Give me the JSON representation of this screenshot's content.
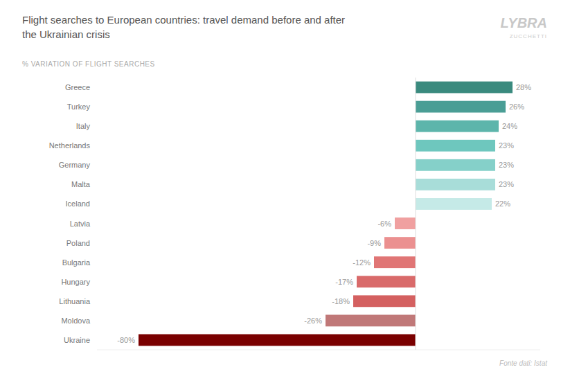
{
  "chart_data": {
    "type": "bar",
    "orientation": "horizontal",
    "title": [
      "Flight searches to European countries: travel demand before and after",
      "the Ukrainian crisis"
    ],
    "subtitle": "% VARIATION OF FLIGHT SEARCHES",
    "annotations": [
      "LYBRA",
      "ZUCCHETTI",
      "Fonte dati: Istat"
    ],
    "categories": [
      "Greece",
      "Turkey",
      "Italy",
      "Netherlands",
      "Germany",
      "Malta",
      "Iceland",
      "Latvia",
      "Poland",
      "Bulgaria",
      "Hungary",
      "Lithuania",
      "Moldova",
      "Ukraine"
    ],
    "values": [
      28,
      26,
      24,
      23,
      23,
      23,
      22,
      -6,
      -9,
      -12,
      -17,
      -18,
      -26,
      -80
    ],
    "value_labels": [
      "28%",
      "26%",
      "24%",
      "23%",
      "23%",
      "23%",
      "22%",
      "-6%",
      "-9%",
      "-12%",
      "-17%",
      "-18%",
      "-26%",
      "-80%"
    ],
    "colors": [
      "#3a8a7e",
      "#4a9e95",
      "#5db5ab",
      "#6ec7be",
      "#85d0c9",
      "#a8ddd9",
      "#c5eae7",
      "#f0a0a0",
      "#eb9090",
      "#e07575",
      "#d96a6a",
      "#d46060",
      "#c07878",
      "#7a0000"
    ],
    "xlim": [
      -92,
      36
    ],
    "grid": false,
    "data_labels": true,
    "tick_labels": "y"
  }
}
